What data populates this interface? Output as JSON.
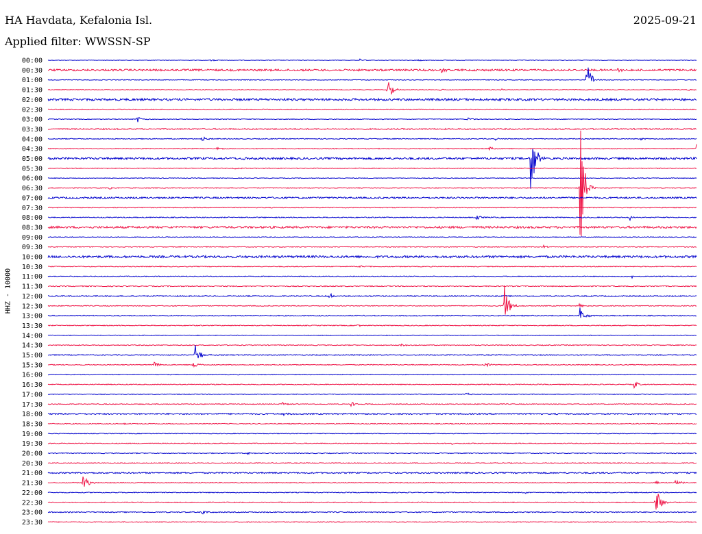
{
  "header": {
    "station": "HA Havdata, Kefalonia Isl.",
    "date": "2025-09-21",
    "filter": "Applied filter: WWSSN-SP"
  },
  "chart_data": {
    "type": "line",
    "ylabel": "HHZ - 10000",
    "colors": [
      "#0000cc",
      "#ee1144"
    ],
    "rows": [
      "00:00",
      "00:30",
      "01:00",
      "01:30",
      "02:00",
      "02:30",
      "03:00",
      "03:30",
      "04:00",
      "04:30",
      "05:00",
      "05:30",
      "06:00",
      "06:30",
      "07:00",
      "07:30",
      "08:00",
      "08:30",
      "09:00",
      "09:30",
      "10:00",
      "10:30",
      "11:00",
      "11:30",
      "12:00",
      "12:30",
      "13:00",
      "13:30",
      "14:00",
      "14:30",
      "15:00",
      "15:30",
      "16:00",
      "16:30",
      "17:00",
      "17:30",
      "18:00",
      "18:30",
      "19:00",
      "19:30",
      "20:00",
      "20:30",
      "21:00",
      "21:30",
      "22:00",
      "22:30",
      "23:00",
      "23:30"
    ],
    "xlim": [
      0,
      30
    ],
    "x_unit": "minutes",
    "noise": [
      0.4,
      1.4,
      0.5,
      0.5,
      1.6,
      0.5,
      0.5,
      0.9,
      0.6,
      0.6,
      1.5,
      0.6,
      0.5,
      0.6,
      1.2,
      0.6,
      0.7,
      1.5,
      0.5,
      0.6,
      1.6,
      0.6,
      0.6,
      0.7,
      0.8,
      0.6,
      0.7,
      0.6,
      0.5,
      0.6,
      0.7,
      0.6,
      0.5,
      0.6,
      0.5,
      0.6,
      1.0,
      0.6,
      0.5,
      0.6,
      0.6,
      0.6,
      1.0,
      0.6,
      0.6,
      0.6,
      0.7,
      0.6
    ],
    "events": [
      {
        "row": 0,
        "t": 7.5,
        "amp": 2
      },
      {
        "row": 0,
        "t": 14.4,
        "amp": 2
      },
      {
        "row": 0,
        "t": 17.1,
        "amp": 2
      },
      {
        "row": 1,
        "t": 18.2,
        "amp": 3
      },
      {
        "row": 1,
        "t": 26.3,
        "amp": 3
      },
      {
        "row": 2,
        "t": 24.9,
        "amp": 32
      },
      {
        "row": 3,
        "t": 15.7,
        "amp": 20
      },
      {
        "row": 3,
        "t": 18.1,
        "amp": 2
      },
      {
        "row": 3,
        "t": 20.9,
        "amp": 2
      },
      {
        "row": 3,
        "t": 29.6,
        "amp": 2
      },
      {
        "row": 6,
        "t": 4.1,
        "amp": 6
      },
      {
        "row": 6,
        "t": 19.4,
        "amp": 3
      },
      {
        "row": 8,
        "t": 7.1,
        "amp": 5
      },
      {
        "row": 8,
        "t": 20.7,
        "amp": 2
      },
      {
        "row": 8,
        "t": 27.4,
        "amp": 2
      },
      {
        "row": 9,
        "t": 7.8,
        "amp": 2
      },
      {
        "row": 9,
        "t": 20.4,
        "amp": 5
      },
      {
        "row": 9,
        "t": 30.0,
        "amp": 10
      },
      {
        "row": 10,
        "t": 9.0,
        "amp": 3
      },
      {
        "row": 10,
        "t": 22.3,
        "amp": 75
      },
      {
        "row": 11,
        "t": 8.6,
        "amp": 2
      },
      {
        "row": 13,
        "t": 2.8,
        "amp": 2
      },
      {
        "row": 13,
        "t": 24.6,
        "amp": 110
      },
      {
        "row": 16,
        "t": 19.8,
        "amp": 4
      },
      {
        "row": 16,
        "t": 26.9,
        "amp": 5
      },
      {
        "row": 17,
        "t": 5.5,
        "amp": 3
      },
      {
        "row": 19,
        "t": 22.9,
        "amp": 3
      },
      {
        "row": 21,
        "t": 14.4,
        "amp": 3
      },
      {
        "row": 22,
        "t": 27.0,
        "amp": 3
      },
      {
        "row": 24,
        "t": 13.0,
        "amp": 5
      },
      {
        "row": 25,
        "t": 21.1,
        "amp": 36
      },
      {
        "row": 25,
        "t": 24.5,
        "amp": 4
      },
      {
        "row": 26,
        "t": 24.6,
        "amp": 13
      },
      {
        "row": 27,
        "t": 14.3,
        "amp": 2
      },
      {
        "row": 29,
        "t": 16.3,
        "amp": 3
      },
      {
        "row": 30,
        "t": 6.8,
        "amp": 25
      },
      {
        "row": 31,
        "t": 4.9,
        "amp": 5
      },
      {
        "row": 31,
        "t": 6.7,
        "amp": 7
      },
      {
        "row": 31,
        "t": 20.2,
        "amp": 5
      },
      {
        "row": 33,
        "t": 27.1,
        "amp": 6
      },
      {
        "row": 34,
        "t": 19.3,
        "amp": 3
      },
      {
        "row": 35,
        "t": 10.8,
        "amp": 3
      },
      {
        "row": 35,
        "t": 14.0,
        "amp": 5
      },
      {
        "row": 36,
        "t": 10.9,
        "amp": 3
      },
      {
        "row": 37,
        "t": 3.5,
        "amp": 2
      },
      {
        "row": 39,
        "t": 18.6,
        "amp": 2
      },
      {
        "row": 40,
        "t": 9.2,
        "amp": 3
      },
      {
        "row": 43,
        "t": 1.6,
        "amp": 18
      },
      {
        "row": 43,
        "t": 28.1,
        "amp": 4
      },
      {
        "row": 43,
        "t": 29.0,
        "amp": 6
      },
      {
        "row": 44,
        "t": 22.1,
        "amp": 2
      },
      {
        "row": 45,
        "t": 28.1,
        "amp": 30
      },
      {
        "row": 46,
        "t": 7.1,
        "amp": 4
      }
    ]
  }
}
